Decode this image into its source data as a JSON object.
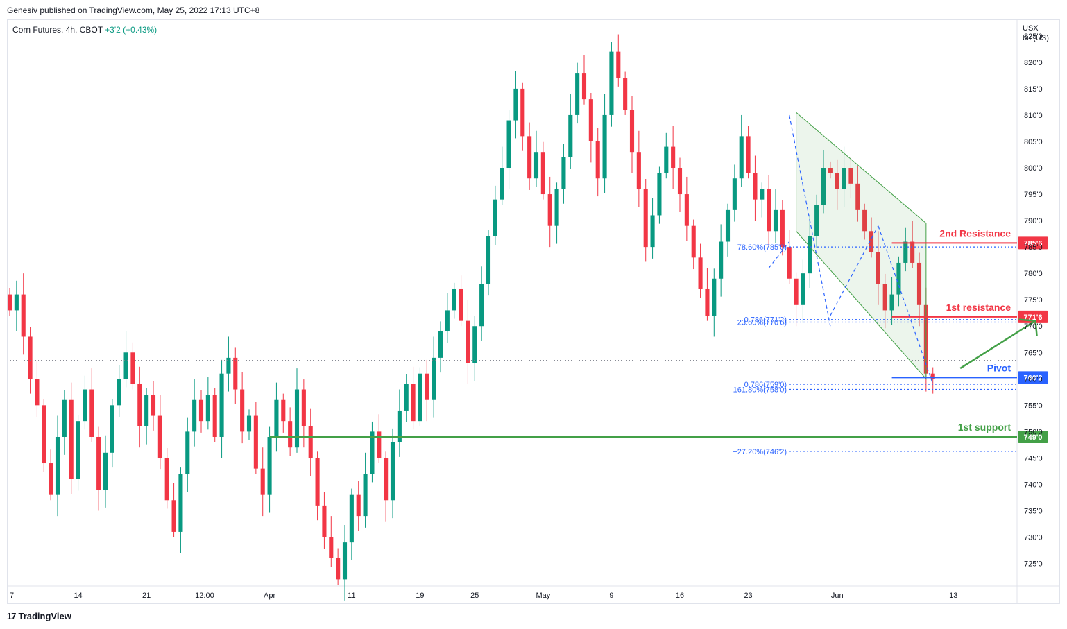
{
  "header": {
    "publisher_line": "Genesiv published on TradingView.com, May 25, 2022 17:13 UTC+8"
  },
  "legend": {
    "symbol": "Corn Futures, 4h, CBOT",
    "change": "+3'2 (+0.43%)"
  },
  "footer": {
    "brand": "TradingView",
    "brand_mark": "17"
  },
  "colors": {
    "up": "#089981",
    "down": "#f23645",
    "resistance": "#f23645",
    "pivot": "#2962ff",
    "support": "#43a047",
    "fib": "#2962ff",
    "channel": "#43a047"
  },
  "chart_data": {
    "type": "candlestick",
    "price_unit_label": [
      "USX",
      "bu (US)"
    ],
    "y_axis": {
      "range": [
        721,
        828
      ],
      "ticks": [
        "825'0",
        "820'0",
        "815'0",
        "810'0",
        "805'0",
        "800'0",
        "795'0",
        "790'0",
        "785'0",
        "780'0",
        "775'0",
        "770'0",
        "765'0",
        "760'0",
        "755'0",
        "750'0",
        "745'0",
        "740'0",
        "735'0",
        "730'0",
        "725'0"
      ],
      "tick_values": [
        825,
        820,
        815,
        810,
        805,
        800,
        795,
        790,
        785,
        780,
        775,
        770,
        765,
        760,
        755,
        750,
        745,
        740,
        735,
        730,
        725
      ]
    },
    "x_axis": {
      "range": [
        0,
        147
      ],
      "ticks": [
        {
          "label": "7",
          "pos": 0
        },
        {
          "label": "14",
          "pos": 10
        },
        {
          "label": "21",
          "pos": 20
        },
        {
          "label": "12:00",
          "pos": 28.5
        },
        {
          "label": "Apr",
          "pos": 38
        },
        {
          "label": "11",
          "pos": 50
        },
        {
          "label": "19",
          "pos": 60
        },
        {
          "label": "25",
          "pos": 68
        },
        {
          "label": "May",
          "pos": 78
        },
        {
          "label": "9",
          "pos": 88
        },
        {
          "label": "16",
          "pos": 98
        },
        {
          "label": "23",
          "pos": 108
        },
        {
          "label": "Jun",
          "pos": 121
        },
        {
          "label": "13",
          "pos": 138
        }
      ]
    },
    "closes": [
      773,
      776,
      768,
      760,
      755,
      744,
      738,
      749,
      756,
      741,
      752,
      758,
      749,
      739,
      746,
      755,
      760,
      765,
      759,
      751,
      757,
      753,
      745,
      737,
      731,
      742,
      750,
      756,
      752,
      757,
      749,
      761,
      764,
      758,
      750,
      753,
      743,
      738,
      749,
      756,
      752,
      747,
      758,
      751,
      745,
      736,
      730,
      726,
      722,
      729,
      738,
      734,
      742,
      750,
      745,
      737,
      748,
      754,
      759,
      752,
      761,
      756,
      764,
      769,
      773,
      777,
      771,
      763,
      770,
      778,
      787,
      794,
      800,
      809,
      815,
      806,
      798,
      803,
      795,
      789,
      796,
      802,
      810,
      818,
      813,
      805,
      798,
      810,
      822,
      817,
      811,
      803,
      796,
      785,
      791,
      799,
      804,
      800,
      795,
      789,
      783,
      777,
      772,
      779,
      786,
      792,
      798,
      806,
      799,
      794,
      796,
      788,
      792,
      785,
      779,
      774,
      780,
      787,
      793,
      800,
      799,
      796,
      800,
      797,
      792,
      788,
      784,
      778,
      773,
      776,
      782,
      786,
      782,
      774,
      761,
      760
    ],
    "levels": [
      {
        "name": "2nd Resistance",
        "value": 785.75,
        "tag": "785'6",
        "kind": "resistance"
      },
      {
        "name": "1st resistance",
        "value": 771.75,
        "tag": "771'6",
        "kind": "resistance"
      },
      {
        "name": "Pivot",
        "value": 760.25,
        "tag": "760'2",
        "kind": "pivot"
      },
      {
        "name": "1st support",
        "value": 749,
        "tag": "749'0",
        "kind": "support"
      }
    ],
    "fib_labels": [
      {
        "text": "78.60%(785'0)",
        "value": 785
      },
      {
        "text": "0.786(771'2)",
        "value": 771.25
      },
      {
        "text": "23.60%(770'6)",
        "value": 770.75
      },
      {
        "text": "0.786(759'0)",
        "value": 759
      },
      {
        "text": "161.80%(758'0)",
        "value": 758
      },
      {
        "text": "−27.20%(746'2)",
        "value": 746.25
      }
    ],
    "last_price_value": 763.5
  }
}
